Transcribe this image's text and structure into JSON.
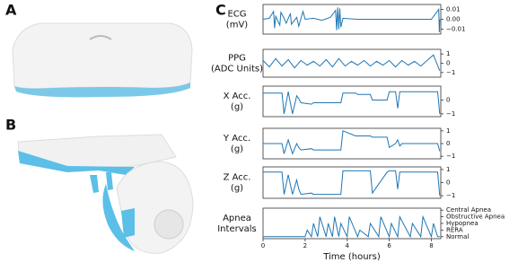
{
  "panel_labels": [
    "A",
    "B",
    "C"
  ],
  "chart_data": [
    {
      "type": "line",
      "ylabel": [
        "ECG",
        "(mV)"
      ],
      "color": "#1f77b4",
      "xlim": [
        0,
        8.45
      ],
      "ylim": [
        -0.015,
        0.015
      ],
      "yticks": [
        {
          "value": 0.01,
          "label": "0.01"
        },
        {
          "value": 0,
          "label": "0.00"
        },
        {
          "value": -0.01,
          "label": "−0.01"
        }
      ],
      "x": [
        0,
        0.3,
        0.5,
        0.55,
        0.6,
        0.8,
        0.85,
        1.0,
        1.1,
        1.3,
        1.35,
        1.6,
        1.7,
        1.9,
        2.0,
        2.4,
        2.8,
        3.2,
        3.45,
        3.5,
        3.55,
        3.6,
        3.65,
        3.7,
        3.8,
        4.5,
        5.5,
        6.5,
        7.5,
        8.0,
        8.35,
        8.38,
        8.4
      ],
      "values": [
        0,
        0.001,
        0.008,
        -0.009,
        0.003,
        -0.006,
        0.007,
        0.001,
        -0.004,
        0.006,
        -0.005,
        0.002,
        -0.007,
        0.008,
        0,
        0.001,
        -0.001,
        0.002,
        0.009,
        -0.011,
        0.012,
        -0.01,
        0.011,
        -0.008,
        0.001,
        0,
        0,
        0,
        0,
        0,
        0.01,
        -0.013,
        0
      ]
    },
    {
      "type": "line",
      "ylabel": [
        "PPG",
        "(ADC Units)"
      ],
      "color": "#1f77b4",
      "xlim": [
        0,
        8.45
      ],
      "ylim": [
        -1.5,
        1.5
      ],
      "yticks": [
        1,
        0,
        {
          "value": -1,
          "label": "−1"
        }
      ],
      "x": [
        0,
        0.3,
        0.6,
        0.9,
        1.2,
        1.5,
        1.8,
        2.1,
        2.4,
        2.7,
        3.0,
        3.3,
        3.6,
        3.9,
        4.2,
        4.5,
        4.8,
        5.1,
        5.4,
        5.7,
        6.0,
        6.3,
        6.6,
        6.9,
        7.2,
        7.5,
        7.8,
        8.1,
        8.4
      ],
      "values": [
        0.3,
        -0.4,
        0.5,
        -0.3,
        0.4,
        -0.5,
        0.3,
        -0.2,
        0.2,
        -0.3,
        0.4,
        -0.4,
        0.5,
        -0.3,
        0.2,
        -0.2,
        0.3,
        -0.3,
        0.2,
        -0.2,
        0.3,
        -0.4,
        0.3,
        -0.2,
        0.2,
        -0.3,
        0.3,
        0.9,
        -0.8
      ]
    },
    {
      "type": "line",
      "ylabel": [
        "X Acc.",
        "(g)"
      ],
      "color": "#1f77b4",
      "xlim": [
        0,
        8.45
      ],
      "ylim": [
        -1.2,
        1.0
      ],
      "yticks": [
        0,
        {
          "value": -1,
          "label": "−1"
        }
      ],
      "x": [
        0,
        0.9,
        1.0,
        1.2,
        1.4,
        1.6,
        1.7,
        1.8,
        2.3,
        2.4,
        3.7,
        3.8,
        4.4,
        4.5,
        5.1,
        5.2,
        5.9,
        6.0,
        6.3,
        6.4,
        6.5,
        6.6,
        8.3,
        8.4
      ],
      "values": [
        0.5,
        0.5,
        -1.0,
        0.6,
        -1.0,
        0.3,
        0.1,
        -0.2,
        -0.3,
        -0.2,
        -0.2,
        0.5,
        0.5,
        0.4,
        0.4,
        0.0,
        0.0,
        0.6,
        0.6,
        -0.6,
        0.6,
        0.6,
        0.6,
        -1.0
      ]
    },
    {
      "type": "line",
      "ylabel": [
        "Y Acc.",
        "(g)"
      ],
      "color": "#1f77b4",
      "xlim": [
        0,
        8.45
      ],
      "ylim": [
        -1.2,
        1.2
      ],
      "yticks": [
        1,
        0,
        {
          "value": -1,
          "label": "−1"
        }
      ],
      "x": [
        0,
        0.9,
        1.0,
        1.2,
        1.4,
        1.6,
        1.7,
        1.8,
        2.3,
        2.4,
        3.7,
        3.8,
        4.4,
        4.5,
        5.1,
        5.2,
        5.9,
        6.0,
        6.3,
        6.4,
        6.5,
        6.6,
        8.3,
        8.4
      ],
      "values": [
        0,
        0,
        -0.8,
        0.3,
        -0.8,
        0,
        -0.3,
        -0.5,
        -0.4,
        -0.5,
        -0.5,
        1.0,
        0.6,
        0.6,
        0.6,
        0.5,
        0.5,
        -0.3,
        0,
        0.3,
        -0.2,
        0,
        0,
        -0.6
      ]
    },
    {
      "type": "line",
      "ylabel": [
        "Z Acc.",
        "(g)"
      ],
      "color": "#1f77b4",
      "xlim": [
        0,
        8.45
      ],
      "ylim": [
        -1.2,
        1.2
      ],
      "yticks": [
        1,
        0,
        {
          "value": -1,
          "label": "−1"
        }
      ],
      "x": [
        0,
        0.9,
        1.0,
        1.2,
        1.4,
        1.6,
        1.7,
        1.8,
        2.3,
        2.4,
        3.7,
        3.8,
        4.4,
        4.5,
        5.1,
        5.2,
        5.9,
        6.0,
        6.3,
        6.4,
        6.5,
        6.6,
        8.3,
        8.4
      ],
      "values": [
        0.8,
        0.8,
        -0.9,
        0.6,
        -0.9,
        0.2,
        -0.5,
        -0.9,
        -0.8,
        -0.9,
        -0.9,
        0.9,
        0.9,
        0.9,
        0.9,
        -0.8,
        0.8,
        0.9,
        0.9,
        -0.5,
        0.8,
        0.8,
        0.8,
        -1.0
      ]
    },
    {
      "type": "line",
      "ylabel": [
        "Apnea",
        "Intervals"
      ],
      "color": "#1f77b4",
      "xlim": [
        0,
        8.45
      ],
      "ylim": [
        -0.3,
        4.3
      ],
      "yticks": [
        {
          "value": 4,
          "label": "Central Apnea"
        },
        {
          "value": 3,
          "label": "Obstructive Apnea"
        },
        {
          "value": 2,
          "label": "Hypopnea"
        },
        {
          "value": 1,
          "label": "RERA"
        },
        {
          "value": 0,
          "label": "Normal"
        }
      ],
      "xticks": [
        0,
        2,
        4,
        6,
        8
      ],
      "xlabel": "Time (hours)",
      "x": [
        0,
        2.0,
        2.1,
        2.3,
        2.4,
        2.6,
        2.7,
        3.0,
        3.1,
        3.3,
        3.4,
        3.6,
        3.7,
        4.0,
        4.1,
        4.5,
        4.6,
        5.0,
        5.1,
        5.5,
        5.6,
        6.0,
        6.1,
        6.4,
        6.5,
        7.0,
        7.1,
        7.5,
        7.6,
        8.0,
        8.1,
        8.3,
        8.4
      ],
      "values": [
        0,
        0,
        1,
        0,
        2,
        0,
        3,
        0,
        2,
        0,
        3,
        0,
        2,
        0,
        3,
        0,
        1,
        0,
        2,
        0,
        3,
        0,
        2,
        0,
        3,
        0,
        2,
        0,
        3,
        0,
        2,
        0,
        0
      ]
    }
  ]
}
